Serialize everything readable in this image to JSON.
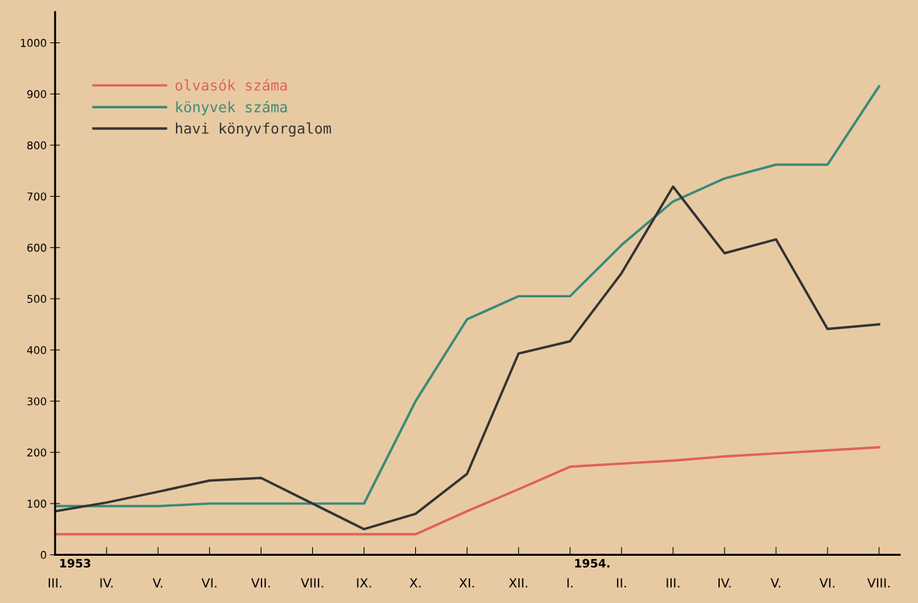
{
  "chart_data": {
    "type": "line",
    "categories": [
      "III.",
      "IV.",
      "V.",
      "VI.",
      "VII.",
      "VIII.",
      "IX.",
      "X.",
      "XI.",
      "XII.",
      "I.",
      "II.",
      "III.",
      "IV.",
      "V.",
      "VI.",
      "VIII."
    ],
    "series": [
      {
        "name": "olvasók száma",
        "color": "#e0605a",
        "values": [
          40,
          40,
          40,
          40,
          40,
          40,
          40,
          40,
          85,
          128,
          172,
          178,
          184,
          192,
          198,
          204,
          210
        ]
      },
      {
        "name": "könyvek száma",
        "color": "#3a8a7a",
        "values": [
          95,
          95,
          95,
          100,
          100,
          100,
          100,
          300,
          460,
          505,
          505,
          605,
          690,
          735,
          762,
          762,
          915
        ]
      },
      {
        "name": "havi könyvforgalom",
        "color": "#333333",
        "values": [
          85,
          102,
          123,
          145,
          150,
          100,
          50,
          80,
          158,
          393,
          417,
          550,
          719,
          589,
          616,
          441,
          450
        ]
      }
    ],
    "ylim": [
      0,
      1060
    ],
    "yticks": [
      0,
      100,
      200,
      300,
      400,
      500,
      600,
      700,
      800,
      900,
      1000
    ],
    "annotations": [
      "1953",
      "1954."
    ],
    "legend": "top left",
    "grid": false
  }
}
